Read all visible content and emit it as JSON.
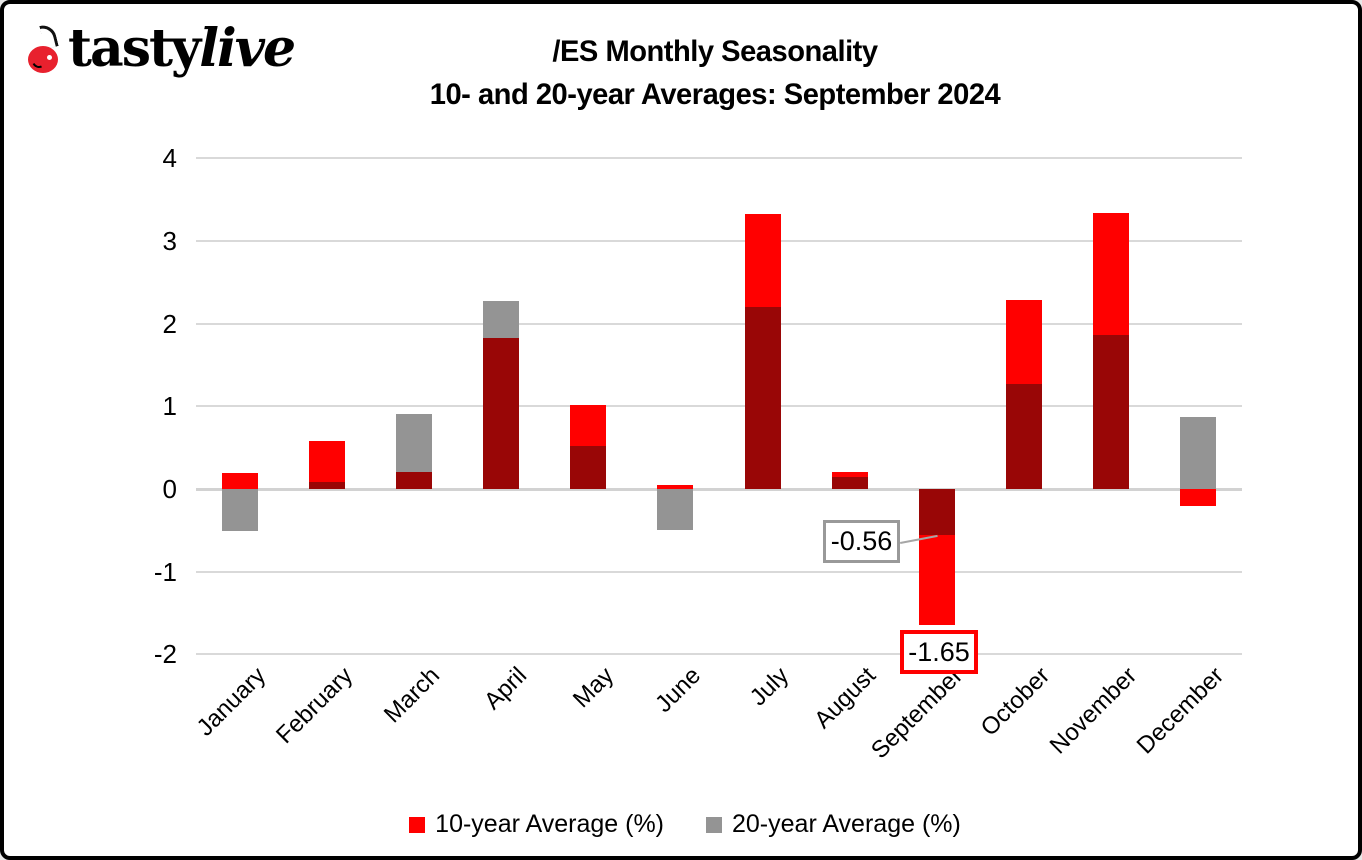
{
  "brand": {
    "logo_text_main": "tasty",
    "logo_text_accent": "live"
  },
  "header": {
    "title": "/ES Monthly Seasonality",
    "subtitle": "10- and 20-year Averages: September 2024"
  },
  "colors": {
    "series_10yr": "#ff0000",
    "series_20yr": "#949494",
    "overlap": "#990606",
    "gridline": "#d9d9d9",
    "frame_border": "#000000",
    "annotation_gray_border": "#999999",
    "annotation_red_border": "#ff0000",
    "cherry_red": "#e8212e"
  },
  "chart_data": {
    "type": "bar",
    "bar_mode": "overlapping-from-zero",
    "title": "/ES Monthly Seasonality",
    "subtitle": "10- and 20-year Averages: September 2024",
    "categories": [
      "January",
      "February",
      "March",
      "April",
      "May",
      "June",
      "July",
      "August",
      "September",
      "October",
      "November",
      "December"
    ],
    "series": [
      {
        "name": "10-year Average (%)",
        "color": "#ff0000",
        "values": [
          0.19,
          0.58,
          0.21,
          1.82,
          1.01,
          0.05,
          3.33,
          0.2,
          -1.65,
          2.29,
          3.34,
          -0.21
        ]
      },
      {
        "name": "20-year Average (%)",
        "color": "#949494",
        "values": [
          -0.51,
          0.08,
          0.91,
          2.27,
          0.52,
          -0.5,
          2.2,
          0.14,
          -0.56,
          1.27,
          1.86,
          0.87
        ]
      }
    ],
    "ylim": [
      -2,
      4
    ],
    "yticks": [
      4,
      3,
      2,
      1,
      0,
      -1,
      -2
    ],
    "grid": "horizontal",
    "legend_position": "bottom",
    "annotations": [
      {
        "text": "-0.56",
        "value": -0.56,
        "month": "September",
        "series": "20-year Average (%)",
        "style": "gray-box"
      },
      {
        "text": "-1.65",
        "value": -1.65,
        "month": "September",
        "series": "10-year Average (%)",
        "style": "red-box"
      }
    ]
  },
  "legend": {
    "items": [
      {
        "label": "10-year Average (%)",
        "color": "#ff0000"
      },
      {
        "label": "20-year Average (%)",
        "color": "#949494"
      }
    ]
  }
}
